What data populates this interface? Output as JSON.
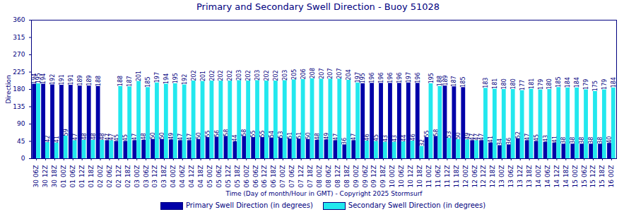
{
  "chart_data": {
    "type": "bar",
    "title": "Primary and Secondary Swell Direction - Buoy 51028",
    "x_label": "Time (Day of month/Hour in GMT) - Copyright 2025 Stormsurf",
    "y_label": "Direction",
    "categories": [
      "30 06Z",
      "30 12Z",
      "30 18Z",
      "01 00Z",
      "01 06Z",
      "01 12Z",
      "01 18Z",
      "02 00Z",
      "02 06Z",
      "02 12Z",
      "02 18Z",
      "03 00Z",
      "03 06Z",
      "03 12Z",
      "03 18Z",
      "04 00Z",
      "04 06Z",
      "04 12Z",
      "04 18Z",
      "05 00Z",
      "05 06Z",
      "05 12Z",
      "05 18Z",
      "06 00Z",
      "06 06Z",
      "06 12Z",
      "06 18Z",
      "07 00Z",
      "07 06Z",
      "07 12Z",
      "07 18Z",
      "08 00Z",
      "08 06Z",
      "08 12Z",
      "08 18Z",
      "09 00Z",
      "09 06Z",
      "09 12Z",
      "09 18Z",
      "10 00Z",
      "10 06Z",
      "10 12Z",
      "10 18Z",
      "11 00Z",
      "11 06Z",
      "11 12Z",
      "11 18Z",
      "12 00Z",
      "12 06Z",
      "12 12Z",
      "12 18Z",
      "13 00Z",
      "13 06Z",
      "13 12Z",
      "13 18Z",
      "14 00Z",
      "14 06Z",
      "14 12Z",
      "14 18Z",
      "15 00Z",
      "15 06Z",
      "15 12Z",
      "15 18Z",
      "16 00Z"
    ],
    "series": [
      {
        "name": "Primary Swell Direction (in degrees)",
        "color": "#0000a8",
        "values": [
          194,
          194,
          192,
          191,
          191,
          189,
          189,
          188,
          47,
          45,
          45,
          47,
          48,
          50,
          50,
          49,
          47,
          47,
          50,
          55,
          56,
          58,
          44,
          58,
          55,
          55,
          54,
          53,
          51,
          51,
          50,
          48,
          49,
          47,
          36,
          47,
          195,
          196,
          196,
          196,
          196,
          197,
          196,
          55,
          58,
          189,
          187,
          185,
          47,
          47,
          41,
          34,
          36,
          52,
          47,
          45,
          43,
          41,
          38,
          38,
          38,
          38,
          38,
          40
        ]
      },
      {
        "name": "Secondary Swell Direction (in degrees)",
        "color": "#22e8ee",
        "values": [
          195,
          42,
          41,
          59,
          47,
          48,
          48,
          48,
          47,
          188,
          187,
          201,
          185,
          197,
          194,
          195,
          192,
          202,
          201,
          202,
          202,
          202,
          203,
          202,
          203,
          202,
          202,
          203,
          205,
          206,
          208,
          207,
          207,
          207,
          204,
          197,
          46,
          45,
          43,
          43,
          44,
          46,
          32,
          195,
          188,
          53,
          50,
          49,
          47,
          183,
          181,
          180,
          180,
          177,
          181,
          179,
          180,
          185,
          184,
          184,
          179,
          175,
          179,
          184
        ]
      }
    ],
    "ylim": [
      0,
      360
    ],
    "yticks": [
      0,
      45,
      90,
      135,
      180,
      225,
      270,
      315,
      360
    ],
    "grid": false,
    "data_labels": true,
    "legend": "bottom"
  }
}
